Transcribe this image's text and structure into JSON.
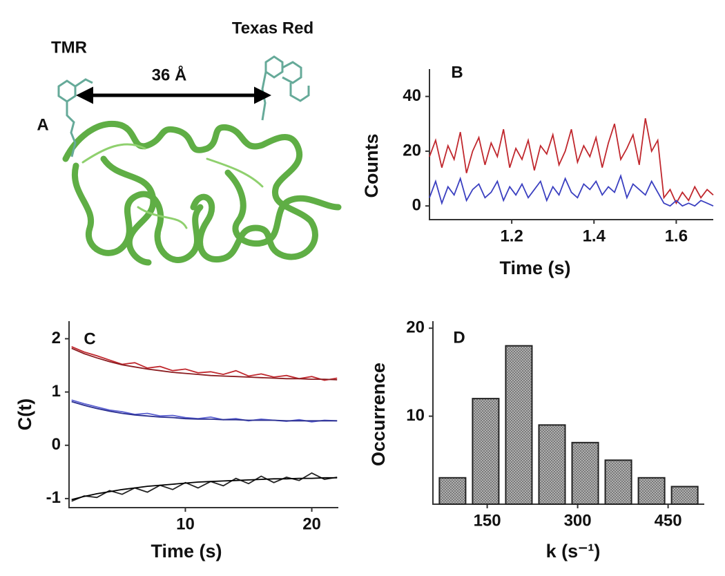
{
  "panel_a": {
    "label": "A",
    "left_dye": "TMR",
    "right_dye": "Texas Red",
    "distance": "36 Å"
  },
  "chart_data": [
    {
      "type": "line",
      "panel_label": "B",
      "xlabel": "Time (s)",
      "ylabel": "Counts",
      "x": [
        1.0,
        1.015,
        1.03,
        1.045,
        1.06,
        1.075,
        1.09,
        1.105,
        1.12,
        1.135,
        1.15,
        1.165,
        1.18,
        1.195,
        1.21,
        1.225,
        1.24,
        1.255,
        1.27,
        1.285,
        1.3,
        1.315,
        1.33,
        1.345,
        1.36,
        1.375,
        1.39,
        1.405,
        1.42,
        1.435,
        1.45,
        1.465,
        1.48,
        1.495,
        1.51,
        1.525,
        1.54,
        1.555,
        1.57,
        1.585,
        1.6,
        1.615,
        1.63,
        1.645,
        1.66,
        1.675,
        1.69
      ],
      "series": [
        {
          "color": "#c0272d",
          "values": [
            18,
            24,
            14,
            22,
            17,
            27,
            12,
            20,
            25,
            15,
            23,
            18,
            28,
            14,
            21,
            17,
            24,
            13,
            22,
            19,
            26,
            15,
            20,
            28,
            16,
            22,
            18,
            25,
            14,
            23,
            30,
            17,
            21,
            26,
            15,
            32,
            20,
            24,
            3,
            6,
            1,
            5,
            2,
            7,
            3,
            6,
            4
          ]
        },
        {
          "color": "#3a3fc0",
          "values": [
            3,
            9,
            1,
            7,
            4,
            10,
            2,
            6,
            8,
            3,
            5,
            9,
            2,
            7,
            4,
            8,
            3,
            6,
            9,
            2,
            7,
            4,
            10,
            5,
            3,
            8,
            6,
            9,
            4,
            7,
            5,
            11,
            3,
            8,
            6,
            4,
            9,
            5,
            1,
            0,
            2,
            0,
            1,
            0,
            2,
            1,
            0
          ]
        }
      ],
      "xlim": [
        1.0,
        1.69
      ],
      "ylim": [
        -5,
        50
      ],
      "xticks": [
        1.2,
        1.4,
        1.6
      ],
      "yticks": [
        0,
        20,
        40
      ]
    },
    {
      "type": "line",
      "panel_label": "C",
      "xlabel": "Time (s)",
      "ylabel": "C(t)",
      "x": [
        1,
        2,
        3,
        4,
        5,
        6,
        7,
        8,
        9,
        10,
        11,
        12,
        13,
        14,
        15,
        16,
        17,
        18,
        19,
        20,
        21,
        22
      ],
      "series": [
        {
          "color": "#c0272d",
          "values": [
            1.85,
            1.75,
            1.68,
            1.6,
            1.52,
            1.55,
            1.45,
            1.48,
            1.4,
            1.43,
            1.36,
            1.38,
            1.33,
            1.4,
            1.3,
            1.34,
            1.28,
            1.31,
            1.25,
            1.29,
            1.22,
            1.26
          ]
        },
        {
          "color": "#8a1c20",
          "values": [
            1.82,
            1.72,
            1.64,
            1.57,
            1.51,
            1.47,
            1.43,
            1.4,
            1.37,
            1.35,
            1.33,
            1.31,
            1.3,
            1.29,
            1.28,
            1.27,
            1.26,
            1.25,
            1.25,
            1.24,
            1.24,
            1.23
          ]
        },
        {
          "color": "#5a5fd0",
          "values": [
            0.85,
            0.78,
            0.72,
            0.66,
            0.63,
            0.58,
            0.6,
            0.55,
            0.56,
            0.52,
            0.5,
            0.53,
            0.48,
            0.5,
            0.46,
            0.49,
            0.47,
            0.45,
            0.48,
            0.44,
            0.47,
            0.46
          ]
        },
        {
          "color": "#2a2f90",
          "values": [
            0.82,
            0.75,
            0.69,
            0.64,
            0.6,
            0.57,
            0.55,
            0.53,
            0.52,
            0.5,
            0.49,
            0.49,
            0.48,
            0.48,
            0.47,
            0.47,
            0.47,
            0.46,
            0.46,
            0.46,
            0.46,
            0.46
          ]
        },
        {
          "color": "#222222",
          "values": [
            -1.05,
            -0.95,
            -0.98,
            -0.85,
            -0.92,
            -0.8,
            -0.88,
            -0.75,
            -0.83,
            -0.7,
            -0.8,
            -0.68,
            -0.76,
            -0.62,
            -0.72,
            -0.58,
            -0.7,
            -0.6,
            -0.66,
            -0.52,
            -0.64,
            -0.6
          ]
        },
        {
          "color": "#000000",
          "values": [
            -1.02,
            -0.96,
            -0.91,
            -0.87,
            -0.83,
            -0.8,
            -0.77,
            -0.75,
            -0.73,
            -0.71,
            -0.69,
            -0.68,
            -0.67,
            -0.66,
            -0.65,
            -0.64,
            -0.63,
            -0.63,
            -0.62,
            -0.62,
            -0.61,
            -0.61
          ]
        }
      ],
      "xlim": [
        0.8,
        22.1
      ],
      "ylim": [
        -1.17,
        2.33
      ],
      "xticks": [
        10,
        20
      ],
      "yticks": [
        -1,
        0,
        1,
        2
      ]
    },
    {
      "type": "histogram",
      "panel_label": "D",
      "xlabel": "k (s⁻¹)",
      "ylabel": "Occurrence",
      "bins": [
        65,
        120,
        175,
        230,
        285,
        340,
        395,
        450,
        505
      ],
      "values": [
        3,
        12,
        18,
        9,
        7,
        5,
        3,
        2
      ],
      "color": "#9a9a9a",
      "xlim": [
        60,
        510
      ],
      "ylim": [
        0,
        20.8
      ],
      "xticks": [
        150,
        300,
        450
      ],
      "yticks": [
        10,
        20
      ]
    }
  ]
}
